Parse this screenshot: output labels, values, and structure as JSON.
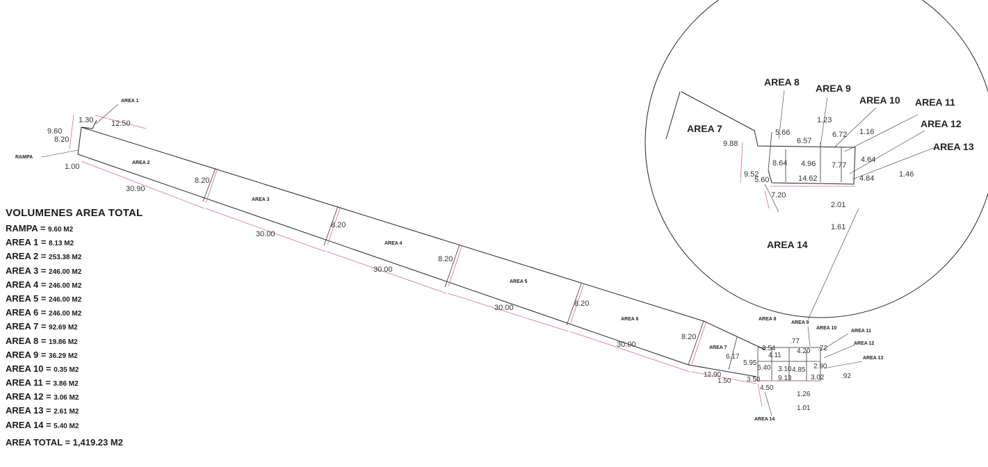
{
  "legend": {
    "title": "VOLUMENES AREA TOTAL",
    "rows": [
      {
        "name": "RAMPA",
        "value": "9.60 M2"
      },
      {
        "name": "AREA 1",
        "value": "8.13 M2"
      },
      {
        "name": "AREA 2",
        "value": "253.38 M2"
      },
      {
        "name": "AREA 3",
        "value": "246.00 M2"
      },
      {
        "name": "AREA 4",
        "value": "246.00 M2"
      },
      {
        "name": "AREA 5",
        "value": "246.00 M2"
      },
      {
        "name": "AREA 6",
        "value": "246.00 M2"
      },
      {
        "name": "AREA 7",
        "value": "92.69 M2"
      },
      {
        "name": "AREA 8",
        "value": "19.86 M2"
      },
      {
        "name": "AREA 9",
        "value": "36.29 M2"
      },
      {
        "name": "AREA 10",
        "value": "0.35 M2"
      },
      {
        "name": "AREA 11",
        "value": "3.86 M2"
      },
      {
        "name": "AREA 12",
        "value": "3.06 M2"
      },
      {
        "name": "AREA 13",
        "value": "2.61 M2"
      },
      {
        "name": "AREA 14",
        "value": "5.40 M2"
      }
    ],
    "total_label": "AREA TOTAL = 1,419.23 M2"
  },
  "plan": {
    "area_labels": {
      "rampa": "RAMPA",
      "a1": "AREA 1",
      "a2": "AREA 2",
      "a3": "AREA 3",
      "a4": "AREA 4",
      "a5": "AREA 5",
      "a6": "AREA 6",
      "a7": "AREA 7",
      "a8": "AREA 8",
      "a9": "AREA 9",
      "a10": "AREA 10",
      "a11": "AREA 11",
      "a12": "AREA 12",
      "a13": "AREA 13",
      "a14": "AREA 14"
    },
    "dims": {
      "d130": "1.30",
      "d960": "9.60",
      "d820a": "8.20",
      "d1250": "12.50",
      "d100": "1.00",
      "d3090": "30.90",
      "d820b": "8.20",
      "d3000a": "30.00",
      "d820c": "8.20",
      "d3000b": "30.00",
      "d820d": "8.20",
      "d3000c": "30.00",
      "d820e": "8.20",
      "d3000d": "30.00",
      "d820f": "8.20",
      "e617": "6.17",
      "e595": "5.95",
      "e354": "3.54",
      "e411": "4.11",
      "e77": ".77",
      "e420": "4.20",
      "e72": ".72",
      "e540": "5.40",
      "e310": "3.10",
      "e485": "4.85",
      "e290": "2.90",
      "e1290": "12.90",
      "e150": "1.50",
      "e350": "3.50",
      "e913": "9.13",
      "e302": "3.02",
      "e92": ".92",
      "e450": "4.50",
      "e126": "1.26",
      "e101": "1.01"
    },
    "detail": {
      "i566": "5.66",
      "i123": "1.23",
      "i672": "6.72",
      "i116": "1.16",
      "i988": "9.88",
      "i657": "6.57",
      "i952": "9.52",
      "i864": "8.64",
      "i496": "4.96",
      "i777": "7.77",
      "i464": "4.64",
      "i146": "1.46",
      "i560": "5.60",
      "i1462": "14.62",
      "i484": "4.84",
      "i720": "7.20",
      "i201": "2.01",
      "i161": "1.61"
    }
  }
}
